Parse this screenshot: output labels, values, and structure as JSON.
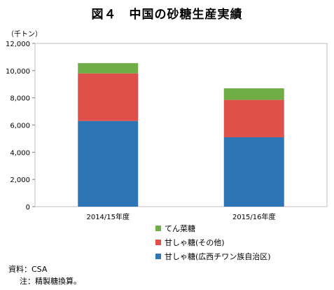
{
  "header": {
    "title": "図４　中国の砂糖生産実績"
  },
  "chart_data": {
    "type": "bar",
    "stacked": true,
    "title": "図４　中国の砂糖生産実績",
    "unit_label": "（千トン）",
    "categories": [
      "2014/15年度",
      "2015/16年度"
    ],
    "series": [
      {
        "name": "甘しゃ糖(広西チワン族自治区)",
        "color": "#2E75B6",
        "values": [
          6300,
          5100
        ]
      },
      {
        "name": "甘しゃ糖(その他)",
        "color": "#E0504A",
        "values": [
          3500,
          2750
        ]
      },
      {
        "name": "てん菜糖",
        "color": "#70AD47",
        "values": [
          750,
          850
        ]
      }
    ],
    "ylim": [
      0,
      12000
    ],
    "yticks": [
      "0",
      "2,000",
      "4,000",
      "6,000",
      "8,000",
      "10,000",
      "12,000"
    ],
    "legend_position": "bottom"
  },
  "notes": {
    "source": "資料：CSA",
    "note": "注：精製糖換算。"
  }
}
